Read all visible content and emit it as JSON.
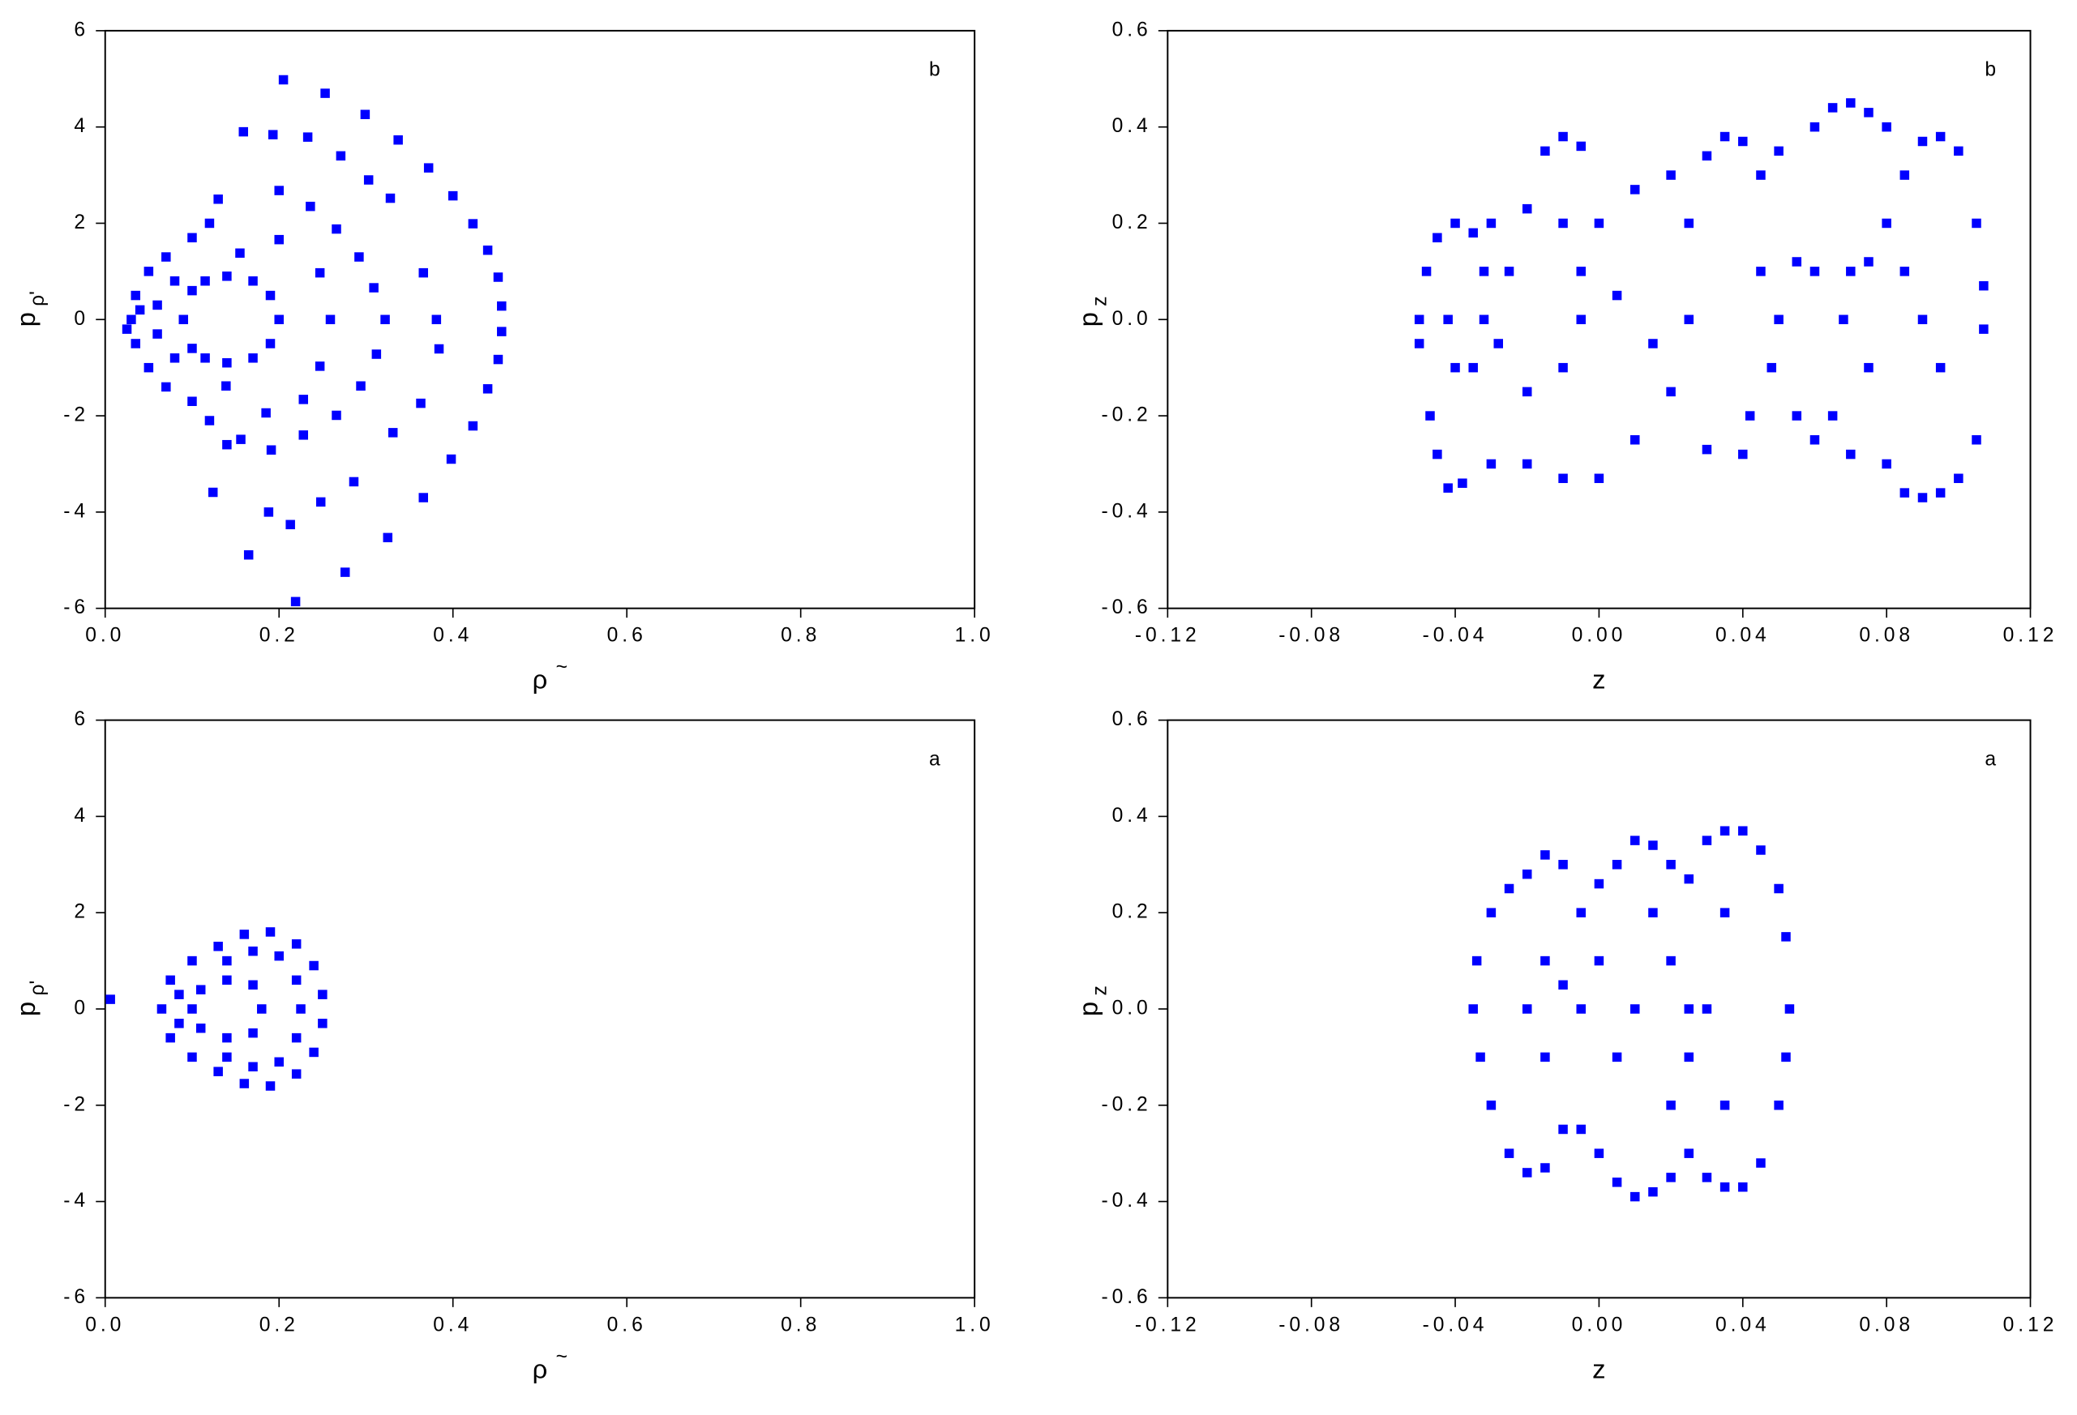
{
  "chart_data": [
    {
      "type": "scatter",
      "annotation": "b",
      "x_label": "ρ",
      "x_label_sup": "~",
      "y_label": "p",
      "y_label_sub": "ρ'",
      "color": "#0000ff",
      "xlim": [
        0,
        1
      ],
      "ylim": [
        -6,
        6
      ],
      "xticks": [
        {
          "value": 0,
          "label": "0.0"
        },
        0.2,
        0.4,
        0.6,
        0.8,
        {
          "value": 1,
          "label": "1.0"
        }
      ],
      "yticks": [
        -6,
        -4,
        -2,
        0,
        2,
        4,
        6
      ],
      "x": [
        0.205,
        0.253,
        0.299,
        0.337,
        0.372,
        0.4,
        0.423,
        0.44,
        0.452,
        0.456,
        0.456,
        0.452,
        0.44,
        0.423,
        0.398,
        0.366,
        0.325,
        0.276,
        0.219,
        0.165,
        0.159,
        0.193,
        0.233,
        0.271,
        0.303,
        0.328,
        0.366,
        0.381,
        0.384,
        0.363,
        0.331,
        0.286,
        0.248,
        0.213,
        0.188,
        0.124,
        0.2,
        0.236,
        0.266,
        0.292,
        0.309,
        0.322,
        0.312,
        0.294,
        0.266,
        0.228,
        0.191,
        0.156,
        0.247,
        0.259,
        0.247,
        0.228,
        0.185,
        0.139,
        0.2,
        0.155,
        0.19,
        0.2,
        0.19,
        0.14,
        0.1,
        0.09,
        0.1,
        0.14,
        0.17,
        0.17,
        0.115,
        0.115,
        0.03,
        0.035,
        0.035,
        0.05,
        0.05,
        0.07,
        0.07,
        0.1,
        0.1,
        0.12,
        0.12,
        0.13,
        0.14,
        0.06,
        0.06,
        0.08,
        0.08,
        0.025,
        0.04
      ],
      "values": [
        4.98,
        4.7,
        4.26,
        3.73,
        3.15,
        2.57,
        1.99,
        1.44,
        0.88,
        0.28,
        -0.25,
        -0.83,
        -1.44,
        -2.21,
        -2.9,
        -3.7,
        -4.53,
        -5.25,
        -5.86,
        -4.89,
        3.9,
        3.84,
        3.79,
        3.4,
        2.9,
        2.52,
        0.97,
        0,
        -0.61,
        -1.74,
        -2.35,
        -3.37,
        -3.79,
        -4.26,
        -4.0,
        -3.59,
        2.68,
        2.35,
        1.88,
        1.3,
        0.66,
        0,
        -0.72,
        -1.38,
        -1.99,
        -2.4,
        -2.71,
        -2.49,
        0.97,
        0,
        -0.97,
        -1.66,
        -1.94,
        -1.38,
        1.66,
        1.38,
        0.5,
        0,
        -0.5,
        -0.9,
        -0.6,
        0,
        0.6,
        0.9,
        0.8,
        -0.8,
        0.8,
        -0.8,
        0,
        0.5,
        -0.5,
        1.0,
        -1.0,
        1.3,
        -1.4,
        1.7,
        -1.7,
        2.0,
        -2.1,
        2.5,
        -2.6,
        0.3,
        -0.3,
        0.8,
        -0.8,
        -0.2,
        0.2
      ]
    },
    {
      "type": "scatter",
      "annotation": "b",
      "x_label": "z",
      "y_label": "p",
      "y_label_sub": "z",
      "color": "#0000ff",
      "xlim": [
        -0.12,
        0.12
      ],
      "ylim": [
        -0.6,
        0.6
      ],
      "xticks": [
        -0.12,
        -0.08,
        -0.04,
        {
          "value": 0,
          "label": "0.00"
        },
        0.04,
        0.08,
        0.12
      ],
      "yticks": [
        -0.6,
        -0.4,
        -0.2,
        {
          "value": 0,
          "label": "0.0"
        },
        0.2,
        0.4,
        0.6
      ],
      "x": [
        -0.05,
        -0.05,
        -0.048,
        -0.045,
        -0.04,
        -0.035,
        -0.032,
        -0.032,
        -0.035,
        -0.04,
        -0.042,
        -0.047,
        -0.045,
        -0.042,
        -0.038,
        -0.03,
        -0.03,
        -0.02,
        -0.01,
        -0.005,
        -0.005,
        -0.01,
        -0.02,
        -0.028,
        -0.025,
        -0.02,
        -0.01,
        -0.015,
        -0.01,
        -0.005,
        0.0,
        0.01,
        0.02,
        0.025,
        0.025,
        0.02,
        0.01,
        0.0,
        0.005,
        0.015,
        0.03,
        0.035,
        0.04,
        0.03,
        0.04,
        0.045,
        0.05,
        0.048,
        0.042,
        0.045,
        0.05,
        0.055,
        0.06,
        0.055,
        0.06,
        0.06,
        0.065,
        0.07,
        0.075,
        0.08,
        0.068,
        0.07,
        0.075,
        0.075,
        0.08,
        0.085,
        0.09,
        0.095,
        0.1,
        0.105,
        0.107,
        0.107,
        0.105,
        0.1,
        0.095,
        0.09,
        0.085,
        0.08,
        0.07,
        0.065,
        0.09,
        0.095,
        0.085
      ],
      "values": [
        0,
        -0.05,
        0.1,
        0.17,
        0.2,
        0.18,
        0.1,
        0,
        -0.1,
        -0.1,
        0,
        -0.2,
        -0.28,
        -0.35,
        -0.34,
        -0.3,
        0.2,
        0.23,
        0.2,
        0.1,
        0,
        -0.1,
        -0.15,
        -0.05,
        0.1,
        -0.3,
        -0.33,
        0.35,
        0.38,
        0.36,
        0.2,
        0.27,
        0.3,
        0.2,
        0.0,
        -0.15,
        -0.25,
        -0.33,
        0.05,
        -0.05,
        0.34,
        0.38,
        0.37,
        -0.27,
        -0.28,
        0.1,
        0.0,
        -0.1,
        -0.2,
        0.3,
        0.35,
        0.12,
        0.1,
        -0.2,
        -0.25,
        0.4,
        0.44,
        0.45,
        0.43,
        0.4,
        0.0,
        0.1,
        0.12,
        -0.1,
        0.2,
        0.3,
        0.37,
        0.38,
        0.35,
        0.2,
        0.07,
        -0.02,
        -0.25,
        -0.33,
        -0.36,
        -0.37,
        -0.36,
        -0.3,
        -0.28,
        -0.2,
        0.0,
        -0.1,
        0.1
      ]
    },
    {
      "type": "scatter",
      "annotation": "a",
      "x_label": "ρ",
      "x_label_sup": "~",
      "y_label": "p",
      "y_label_sub": "ρ'",
      "color": "#0000ff",
      "xlim": [
        0,
        1
      ],
      "ylim": [
        -6,
        6
      ],
      "xticks": [
        {
          "value": 0,
          "label": "0.0"
        },
        0.2,
        0.4,
        0.6,
        0.8,
        {
          "value": 1,
          "label": "1.0"
        }
      ],
      "yticks": [
        -6,
        -4,
        -2,
        0,
        2,
        4,
        6
      ],
      "x": [
        0.19,
        0.22,
        0.24,
        0.25,
        0.25,
        0.24,
        0.22,
        0.19,
        0.16,
        0.13,
        0.1,
        0.075,
        0.065,
        0.075,
        0.1,
        0.13,
        0.16,
        0.2,
        0.22,
        0.225,
        0.22,
        0.2,
        0.17,
        0.17,
        0.14,
        0.14,
        0.17,
        0.18,
        0.17,
        0.14,
        0.11,
        0.1,
        0.11,
        0.14,
        0.085,
        0.085,
        0.006
      ],
      "values": [
        1.6,
        1.35,
        0.9,
        0.3,
        -0.3,
        -0.9,
        -1.35,
        -1.6,
        -1.55,
        -1.3,
        -1.0,
        -0.6,
        0,
        0.6,
        1.0,
        1.3,
        1.55,
        1.1,
        0.6,
        0,
        -0.6,
        -1.1,
        -1.2,
        1.2,
        1.0,
        -1.0,
        0.5,
        0,
        -0.5,
        -0.6,
        -0.4,
        0,
        0.4,
        0.6,
        0.3,
        -0.3,
        0.2
      ]
    },
    {
      "type": "scatter",
      "annotation": "a",
      "x_label": "z",
      "y_label": "p",
      "y_label_sub": "z",
      "color": "#0000ff",
      "xlim": [
        -0.12,
        0.12
      ],
      "ylim": [
        -0.6,
        0.6
      ],
      "xticks": [
        -0.12,
        -0.08,
        -0.04,
        {
          "value": 0,
          "label": "0.00"
        },
        0.04,
        0.08,
        0.12
      ],
      "yticks": [
        -0.6,
        -0.4,
        -0.2,
        {
          "value": 0,
          "label": "0.0"
        },
        0.2,
        0.4,
        0.6
      ],
      "x": [
        -0.035,
        -0.034,
        -0.033,
        -0.03,
        -0.025,
        -0.02,
        -0.015,
        -0.01,
        -0.03,
        -0.025,
        -0.02,
        -0.015,
        -0.01,
        -0.02,
        -0.015,
        -0.015,
        -0.01,
        -0.005,
        0,
        0.005,
        0.01,
        0.015,
        0.02,
        0.025,
        0.03,
        0.035,
        0.04,
        0.045,
        0.05,
        0.052,
        0.053,
        0.052,
        0.05,
        0.045,
        0.04,
        0.035,
        0.03,
        0.025,
        0.02,
        0.015,
        0.01,
        0.005,
        0,
        -0.005,
        0.02,
        0.025,
        0.025,
        0.02,
        0.015,
        0.01,
        0.005,
        0,
        0.035,
        0.035,
        0.03,
        -0.005
      ],
      "values": [
        0,
        0.1,
        -0.1,
        0.2,
        0.25,
        0.28,
        0.32,
        0.3,
        -0.2,
        -0.3,
        -0.34,
        -0.33,
        -0.25,
        0.0,
        0.1,
        -0.1,
        0.05,
        0.2,
        0.26,
        0.3,
        0.35,
        0.34,
        0.3,
        0.27,
        0.35,
        0.37,
        0.37,
        0.33,
        0.25,
        0.15,
        0.0,
        -0.1,
        -0.2,
        -0.32,
        -0.37,
        -0.37,
        -0.35,
        -0.3,
        -0.35,
        -0.38,
        -0.39,
        -0.36,
        -0.3,
        -0.25,
        -0.2,
        -0.1,
        0.0,
        0.1,
        0.2,
        0.0,
        -0.1,
        0.1,
        0.2,
        -0.2,
        0.0,
        0.0
      ]
    }
  ]
}
